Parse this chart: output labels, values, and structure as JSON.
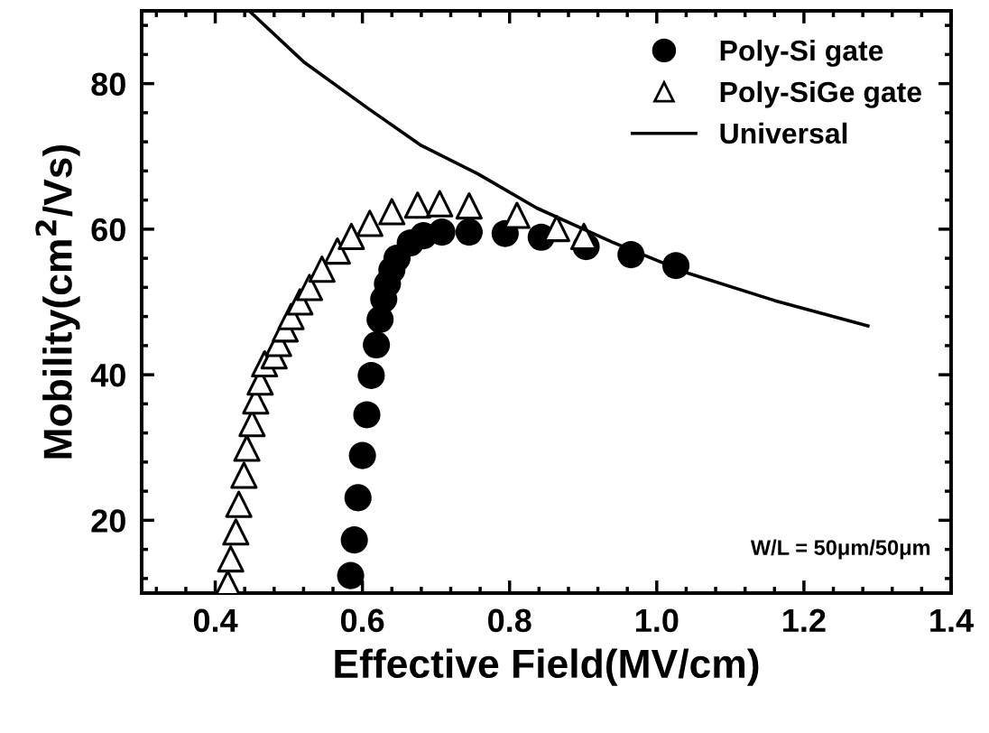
{
  "chart_data": {
    "type": "scatter",
    "xlabel": "Effective Field(MV/cm)",
    "ylabel": "Mobility(cm$^{2}$/Vs)",
    "xlim": [
      0.3,
      1.4
    ],
    "ylim": [
      10,
      90
    ],
    "xticks": [
      0.4,
      0.6,
      0.8,
      {
        "value": 1.0,
        "label": "1.0"
      },
      1.2,
      1.4
    ],
    "yticks": [
      20,
      40,
      60,
      80
    ],
    "grid": false,
    "legend": "top right",
    "annotations": [
      "W/L = 50μm/50μm"
    ],
    "series": [
      {
        "name": "Poly-Si gate",
        "marker": "circle",
        "color": "#000000",
        "x": [
          0.584,
          0.589,
          0.594,
          0.6,
          0.606,
          0.612,
          0.619,
          0.624,
          0.629,
          0.634,
          0.64,
          0.647,
          0.665,
          0.683,
          0.708,
          0.745,
          0.794,
          0.843,
          0.904,
          0.965,
          1.026
        ],
        "values": [
          12.4,
          17.3,
          23.1,
          28.9,
          34.5,
          39.9,
          44.1,
          47.6,
          50.4,
          52.5,
          54.4,
          56.0,
          58.1,
          59.1,
          59.6,
          59.6,
          59.4,
          58.9,
          57.6,
          56.5,
          55.0
        ]
      },
      {
        "name": "Poly-SiGe gate",
        "marker": "triangle",
        "color": "#000000",
        "x": [
          0.417,
          0.421,
          0.428,
          0.432,
          0.439,
          0.443,
          0.45,
          0.455,
          0.461,
          0.467,
          0.48,
          0.486,
          0.495,
          0.503,
          0.515,
          0.528,
          0.545,
          0.566,
          0.585,
          0.61,
          0.64,
          0.675,
          0.705,
          0.745,
          0.81,
          0.864,
          0.901
        ],
        "values": [
          11.3,
          14.7,
          18.4,
          22.2,
          26.2,
          29.9,
          33.3,
          36.4,
          39.0,
          41.5,
          42.6,
          44.3,
          46.3,
          48.0,
          50.0,
          52.0,
          54.5,
          57.0,
          59.0,
          60.8,
          62.4,
          63.3,
          63.5,
          63.2,
          61.9,
          60.1,
          59.0
        ]
      },
      {
        "name": "Universal",
        "type": "line",
        "line_style": "solid",
        "marker": "none",
        "color": "#000000",
        "x": [
          0.446,
          0.52,
          0.609,
          0.68,
          0.757,
          0.837,
          0.94,
          1.044,
          1.16,
          1.287
        ],
        "values": [
          90,
          83,
          76.5,
          71.5,
          67.6,
          62.9,
          58.2,
          53.9,
          50.2,
          46.7
        ]
      }
    ]
  }
}
